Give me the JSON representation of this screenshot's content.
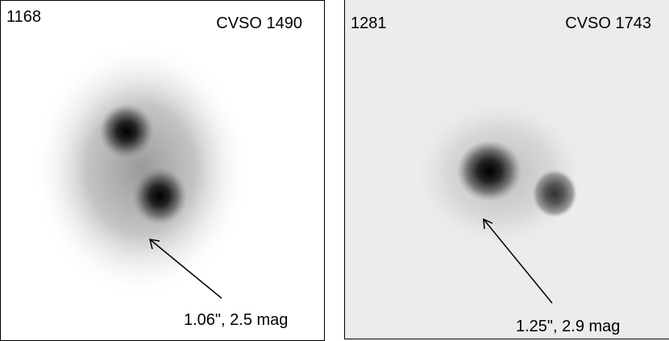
{
  "panels": [
    {
      "id": "1168",
      "name": "CVSO 1490",
      "annotation": "1.06\", 2.5 mag"
    },
    {
      "id": "1281",
      "name": "CVSO 1743",
      "annotation": "1.25\", 2.9 mag"
    }
  ]
}
